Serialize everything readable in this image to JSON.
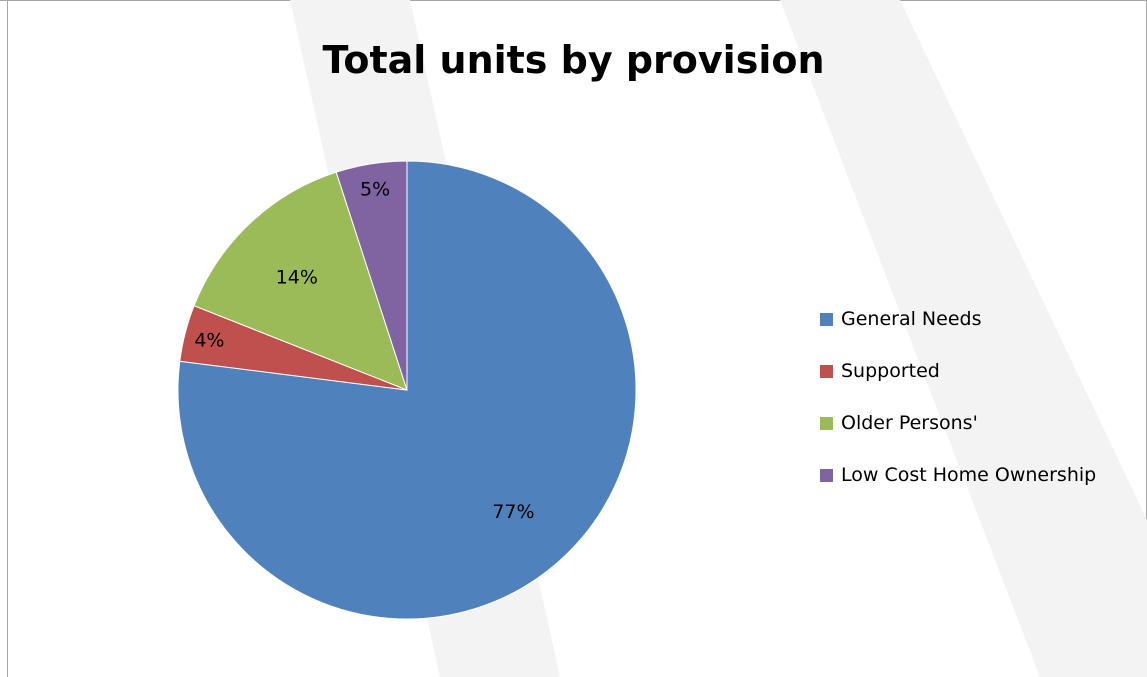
{
  "chart_data": {
    "type": "pie",
    "title": "Total units by provision",
    "categories": [
      "General Needs",
      "Supported",
      "Older Persons'",
      "Low Cost Home Ownership"
    ],
    "values": [
      77,
      4,
      14,
      5
    ],
    "labels": [
      "77%",
      "4%",
      "14%",
      "5%"
    ],
    "colors": [
      "#4f81bd",
      "#c0504d",
      "#9bbb59",
      "#8064a2"
    ],
    "legend_position": "right"
  }
}
